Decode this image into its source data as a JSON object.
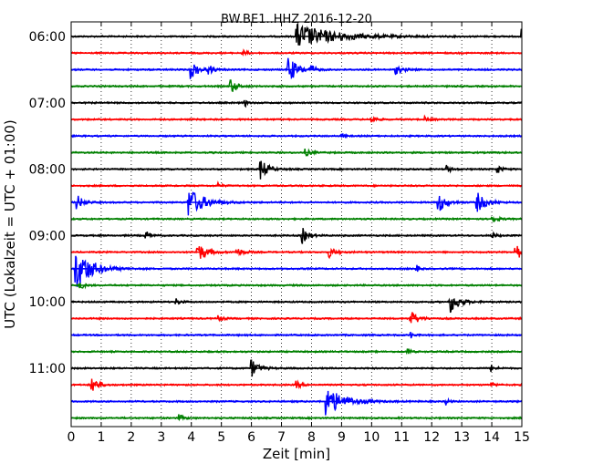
{
  "chart_data": {
    "type": "line",
    "title": "BW.BE1..HHZ 2016-12-20",
    "xlabel": "Zeit  [min]",
    "ylabel": "UTC (Lokalzeit = UTC + 01:00)",
    "xlim": [
      0,
      15
    ],
    "x_ticks": [
      "0",
      "1",
      "2",
      "3",
      "4",
      "5",
      "6",
      "7",
      "8",
      "9",
      "10",
      "11",
      "12",
      "13",
      "14",
      "15"
    ],
    "y_ticks": [
      "06:00",
      "07:00",
      "08:00",
      "09:00",
      "10:00",
      "11:00"
    ],
    "y_tick_traces": [
      0,
      4,
      8,
      12,
      16,
      20
    ],
    "grid": true,
    "trace_interval_min": 15,
    "trace_colors": [
      "#000000",
      "#ff0000",
      "#0000ff",
      "#008000"
    ],
    "traces": [
      {
        "start": "06:00",
        "events": [
          {
            "t": 7.5,
            "amp": 1.0,
            "dur": 2.5
          },
          {
            "t": 15.0,
            "amp": 0.5,
            "dur": 0.3
          }
        ]
      },
      {
        "start": "06:15",
        "events": [
          {
            "t": 5.7,
            "amp": 0.25,
            "dur": 0.3
          }
        ]
      },
      {
        "start": "06:30",
        "events": [
          {
            "t": 4.0,
            "amp": 0.7,
            "dur": 0.5
          },
          {
            "t": 4.6,
            "amp": 0.3,
            "dur": 0.3
          },
          {
            "t": 7.2,
            "amp": 1.2,
            "dur": 0.6
          },
          {
            "t": 8.0,
            "amp": 0.3,
            "dur": 0.3
          },
          {
            "t": 10.8,
            "amp": 0.35,
            "dur": 0.5
          }
        ]
      },
      {
        "start": "06:45",
        "events": [
          {
            "t": 5.3,
            "amp": 0.6,
            "dur": 0.4
          }
        ]
      },
      {
        "start": "07:00",
        "events": [
          {
            "t": 5.8,
            "amp": 0.25,
            "dur": 0.2
          }
        ]
      },
      {
        "start": "07:15",
        "events": [
          {
            "t": 10.0,
            "amp": 0.3,
            "dur": 0.3
          },
          {
            "t": 11.8,
            "amp": 0.2,
            "dur": 0.3
          }
        ]
      },
      {
        "start": "07:30",
        "events": [
          {
            "t": 9.0,
            "amp": 0.2,
            "dur": 0.2
          }
        ]
      },
      {
        "start": "07:45",
        "events": [
          {
            "t": 7.8,
            "amp": 0.25,
            "dur": 0.4
          }
        ]
      },
      {
        "start": "08:00",
        "events": [
          {
            "t": 6.3,
            "amp": 0.8,
            "dur": 0.5
          },
          {
            "t": 12.5,
            "amp": 0.3,
            "dur": 0.3
          },
          {
            "t": 14.2,
            "amp": 0.3,
            "dur": 0.3
          }
        ]
      },
      {
        "start": "08:15",
        "events": [
          {
            "t": 4.9,
            "amp": 0.2,
            "dur": 0.2
          }
        ]
      },
      {
        "start": "08:30",
        "events": [
          {
            "t": 0.2,
            "amp": 0.6,
            "dur": 0.4
          },
          {
            "t": 3.9,
            "amp": 1.2,
            "dur": 1.0
          },
          {
            "t": 12.2,
            "amp": 0.9,
            "dur": 0.5
          },
          {
            "t": 13.5,
            "amp": 0.8,
            "dur": 0.6
          }
        ]
      },
      {
        "start": "08:45",
        "events": [
          {
            "t": 14.0,
            "amp": 0.3,
            "dur": 0.4
          }
        ]
      },
      {
        "start": "09:00",
        "events": [
          {
            "t": 2.5,
            "amp": 0.3,
            "dur": 0.3
          },
          {
            "t": 7.7,
            "amp": 0.6,
            "dur": 0.4
          },
          {
            "t": 14.0,
            "amp": 0.25,
            "dur": 0.3
          }
        ]
      },
      {
        "start": "09:15",
        "events": [
          {
            "t": 4.2,
            "amp": 0.8,
            "dur": 0.6
          },
          {
            "t": 5.5,
            "amp": 0.3,
            "dur": 0.5
          },
          {
            "t": 8.6,
            "amp": 0.4,
            "dur": 0.4
          },
          {
            "t": 14.8,
            "amp": 0.9,
            "dur": 0.3
          }
        ]
      },
      {
        "start": "09:30",
        "events": [
          {
            "t": 0.15,
            "amp": 1.8,
            "dur": 1.0
          },
          {
            "t": 11.5,
            "amp": 0.25,
            "dur": 0.2
          }
        ]
      },
      {
        "start": "09:45",
        "events": [
          {
            "t": 0.3,
            "amp": 0.3,
            "dur": 0.3
          }
        ]
      },
      {
        "start": "10:00",
        "events": [
          {
            "t": 3.5,
            "amp": 0.25,
            "dur": 0.3
          },
          {
            "t": 12.6,
            "amp": 0.9,
            "dur": 0.6
          }
        ]
      },
      {
        "start": "10:15",
        "events": [
          {
            "t": 4.9,
            "amp": 0.25,
            "dur": 0.3
          },
          {
            "t": 11.3,
            "amp": 0.6,
            "dur": 0.5
          }
        ]
      },
      {
        "start": "10:30",
        "events": [
          {
            "t": 11.3,
            "amp": 0.25,
            "dur": 0.2
          }
        ]
      },
      {
        "start": "10:45",
        "events": [
          {
            "t": 11.2,
            "amp": 0.3,
            "dur": 0.2
          }
        ]
      },
      {
        "start": "11:00",
        "events": [
          {
            "t": 6.0,
            "amp": 0.7,
            "dur": 0.5
          },
          {
            "t": 14.0,
            "amp": 0.25,
            "dur": 0.3
          }
        ]
      },
      {
        "start": "11:15",
        "events": [
          {
            "t": 0.7,
            "amp": 0.7,
            "dur": 0.4
          },
          {
            "t": 7.5,
            "amp": 0.3,
            "dur": 0.3
          },
          {
            "t": 14.0,
            "amp": 0.2,
            "dur": 0.3
          }
        ]
      },
      {
        "start": "11:30",
        "events": [
          {
            "t": 8.5,
            "amp": 1.1,
            "dur": 1.2
          },
          {
            "t": 12.5,
            "amp": 0.25,
            "dur": 0.2
          }
        ]
      },
      {
        "start": "11:45",
        "events": [
          {
            "t": 3.6,
            "amp": 0.25,
            "dur": 0.3
          }
        ]
      }
    ]
  }
}
